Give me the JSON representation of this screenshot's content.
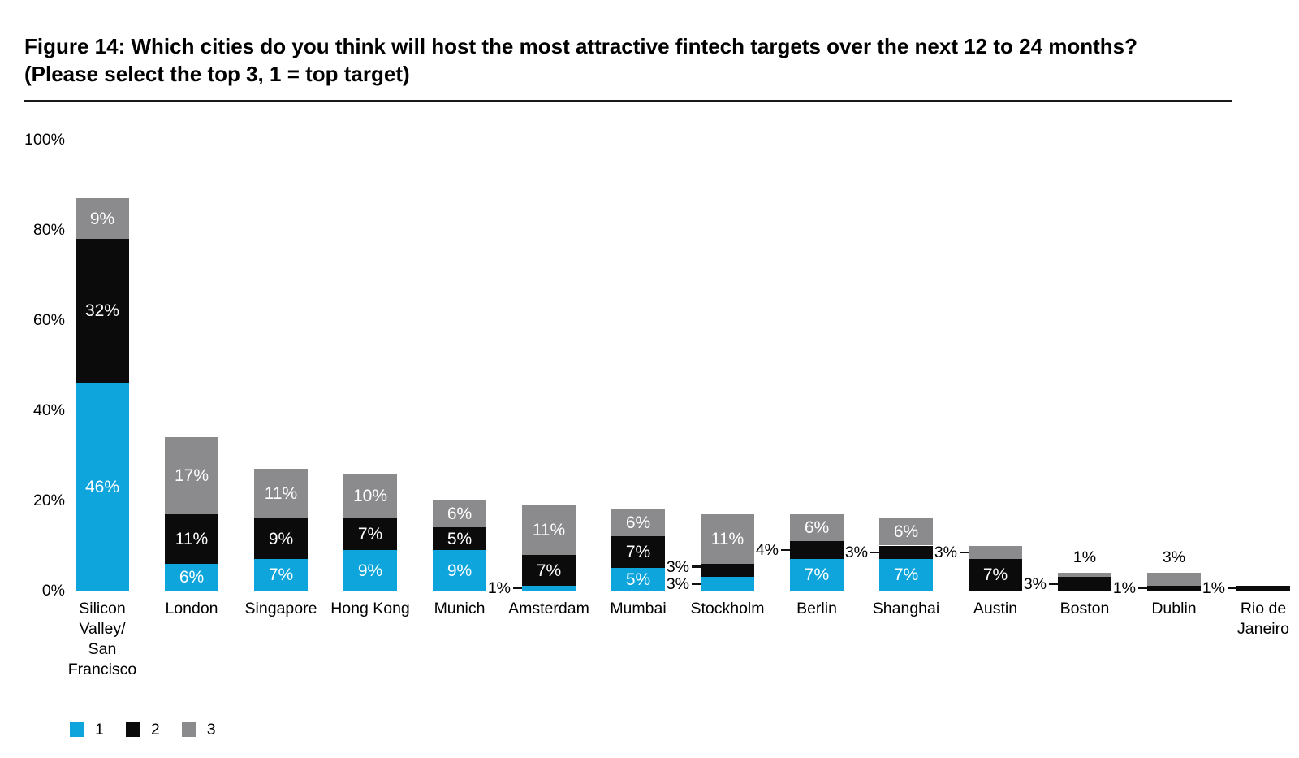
{
  "title": "Figure 14: Which cities do you think will host the most attractive fintech targets over the next 12 to 24 months?\n(Please select the top 3, 1 = top target)",
  "colors": {
    "series1": "#0DA5DB",
    "series2": "#0B0B0B",
    "series3": "#8B8B8D",
    "background": "#FFFFFF",
    "text": "#000000"
  },
  "chart_data": {
    "type": "bar",
    "stacked": true,
    "title": "Figure 14: Which cities do you think will host the most attractive fintech targets over the next 12 to 24 months? (Please select the top 3, 1 = top target)",
    "xlabel": "",
    "ylabel": "",
    "ylim": [
      0,
      100
    ],
    "yticks": [
      "100%",
      "80%",
      "60%",
      "40%",
      "20%",
      "0%"
    ],
    "ytick_values": [
      100,
      80,
      60,
      40,
      20,
      0
    ],
    "grid": false,
    "legend_position": "bottom-left",
    "categories": [
      "Silicon\nValley/\nSan\nFrancisco",
      "London",
      "Singapore",
      "Hong Kong",
      "Munich",
      "Amsterdam",
      "Mumbai",
      "Stockholm",
      "Berlin",
      "Shanghai",
      "Austin",
      "Boston",
      "Dublin",
      "Rio de\nJaneiro"
    ],
    "series": [
      {
        "name": "1",
        "color": "#0DA5DB",
        "values": [
          46,
          6,
          7,
          9,
          9,
          1,
          5,
          3,
          7,
          7,
          0,
          0,
          0,
          0
        ]
      },
      {
        "name": "2",
        "color": "#0B0B0B",
        "values": [
          32,
          11,
          9,
          7,
          5,
          7,
          7,
          3,
          4,
          3,
          7,
          3,
          1,
          1
        ]
      },
      {
        "name": "3",
        "color": "#8B8B8D",
        "values": [
          9,
          17,
          11,
          10,
          6,
          11,
          6,
          11,
          6,
          6,
          3,
          1,
          3,
          0
        ]
      }
    ],
    "data_labels": [
      {
        "city": "Silicon Valley/San Francisco",
        "labels": [
          "46%",
          "32%",
          "9%"
        ]
      },
      {
        "city": "London",
        "labels": [
          "6%",
          "11%",
          "17%"
        ]
      },
      {
        "city": "Singapore",
        "labels": [
          "7%",
          "9%",
          "11%"
        ]
      },
      {
        "city": "Hong Kong",
        "labels": [
          "9%",
          "7%",
          "10%"
        ]
      },
      {
        "city": "Munich",
        "labels": [
          "9%",
          "5%",
          "6%"
        ]
      },
      {
        "city": "Amsterdam",
        "labels": [
          "1%",
          "7%",
          "11%"
        ]
      },
      {
        "city": "Mumbai",
        "labels": [
          "5%",
          "7%",
          "6%"
        ]
      },
      {
        "city": "Stockholm",
        "labels": [
          "3%",
          "3%",
          "11%"
        ]
      },
      {
        "city": "Berlin",
        "labels": [
          "7%",
          "4%",
          "6%"
        ]
      },
      {
        "city": "Shanghai",
        "labels": [
          "7%",
          "3%",
          "6%"
        ]
      },
      {
        "city": "Austin",
        "labels": [
          "",
          "7%",
          "3%"
        ]
      },
      {
        "city": "Boston",
        "labels": [
          "",
          "3%",
          "1%"
        ]
      },
      {
        "city": "Dublin",
        "labels": [
          "",
          "1%",
          "3%"
        ]
      },
      {
        "city": "Rio de Janeiro",
        "labels": [
          "",
          "1%",
          ""
        ]
      }
    ],
    "label_placement": [
      [
        "inside",
        "inside",
        "inside"
      ],
      [
        "inside",
        "inside",
        "inside"
      ],
      [
        "inside",
        "inside",
        "inside"
      ],
      [
        "inside",
        "inside",
        "inside"
      ],
      [
        "inside",
        "inside",
        "inside"
      ],
      [
        "left",
        "inside",
        "inside"
      ],
      [
        "inside",
        "inside",
        "inside"
      ],
      [
        "left",
        "left",
        "inside"
      ],
      [
        "inside",
        "left",
        "inside"
      ],
      [
        "inside",
        "left",
        "inside"
      ],
      [
        "none",
        "inside",
        "left"
      ],
      [
        "none",
        "left",
        "above"
      ],
      [
        "none",
        "left",
        "above"
      ],
      [
        "none",
        "left",
        "none"
      ]
    ],
    "legend": [
      "1",
      "2",
      "3"
    ]
  }
}
